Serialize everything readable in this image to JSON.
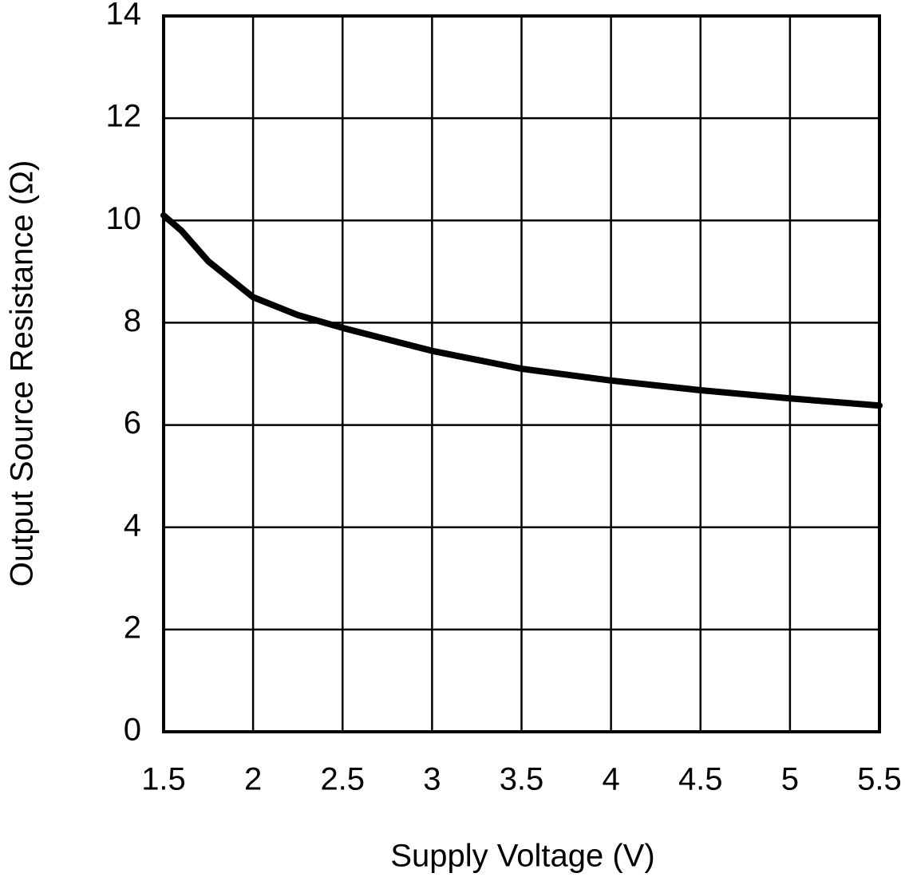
{
  "chart_data": {
    "type": "line",
    "xlabel": "Supply Voltage (V)",
    "ylabel": "Output Source Resistance (Ω)",
    "x": [
      1.5,
      1.6,
      1.75,
      2.0,
      2.25,
      2.5,
      3.0,
      3.5,
      4.0,
      4.5,
      5.0,
      5.5
    ],
    "values": [
      10.1,
      9.8,
      9.2,
      8.5,
      8.15,
      7.9,
      7.45,
      7.1,
      6.87,
      6.68,
      6.52,
      6.38
    ],
    "color": "#000000",
    "xlim": [
      1.5,
      5.5
    ],
    "xticks": [
      1.5,
      2,
      2.5,
      3,
      3.5,
      4,
      4.5,
      5,
      5.5
    ],
    "ylim": [
      0,
      14
    ],
    "yticks": [
      0,
      2,
      4,
      6,
      8,
      10,
      12,
      14
    ],
    "grid": true
  }
}
